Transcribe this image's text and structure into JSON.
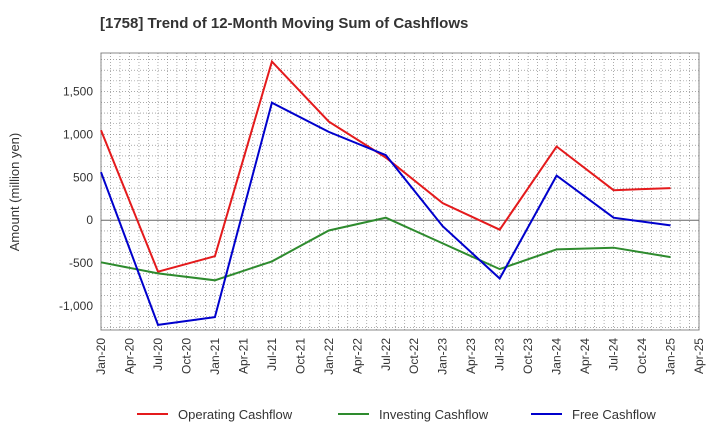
{
  "chart_data": {
    "type": "line",
    "title": "[1758]  Trend of 12-Month Moving Sum of Cashflows",
    "ylabel": "Amount (million yen)",
    "xlabel": "",
    "x": [
      "Jan-20",
      "Jul-20",
      "Jan-21",
      "Jul-21",
      "Jan-22",
      "Jul-22",
      "Jan-23",
      "Jul-23",
      "Jan-24",
      "Jul-24",
      "Jan-25"
    ],
    "x_ticks": [
      "Jan-20",
      "Apr-20",
      "Jul-20",
      "Oct-20",
      "Jan-21",
      "Apr-21",
      "Jul-21",
      "Oct-21",
      "Jan-22",
      "Apr-22",
      "Jul-22",
      "Oct-22",
      "Jan-23",
      "Apr-23",
      "Jul-23",
      "Oct-23",
      "Jan-24",
      "Apr-24",
      "Jul-24",
      "Oct-24",
      "Jan-25",
      "Apr-25"
    ],
    "y_ticks": [
      -1000,
      -500,
      0,
      500,
      1000,
      1500
    ],
    "y_tick_labels": [
      "-1,000",
      "-500",
      "0",
      "500",
      "1,000",
      "1,500"
    ],
    "ylim": [
      -1280,
      1950
    ],
    "grid": true,
    "legend_position": "bottom",
    "series": [
      {
        "name": "Operating Cashflow",
        "color": "#e41a1c",
        "values": [
          1050,
          -600,
          -420,
          1850,
          1150,
          730,
          200,
          -110,
          860,
          350,
          375
        ]
      },
      {
        "name": "Investing Cashflow",
        "color": "#2e8b2e",
        "values": [
          -490,
          -620,
          -700,
          -480,
          -120,
          30,
          -270,
          -570,
          -340,
          -320,
          -430
        ]
      },
      {
        "name": "Free Cashflow",
        "color": "#0000cc",
        "values": [
          560,
          -1220,
          -1130,
          1370,
          1030,
          760,
          -70,
          -680,
          520,
          30,
          -60
        ]
      }
    ]
  }
}
